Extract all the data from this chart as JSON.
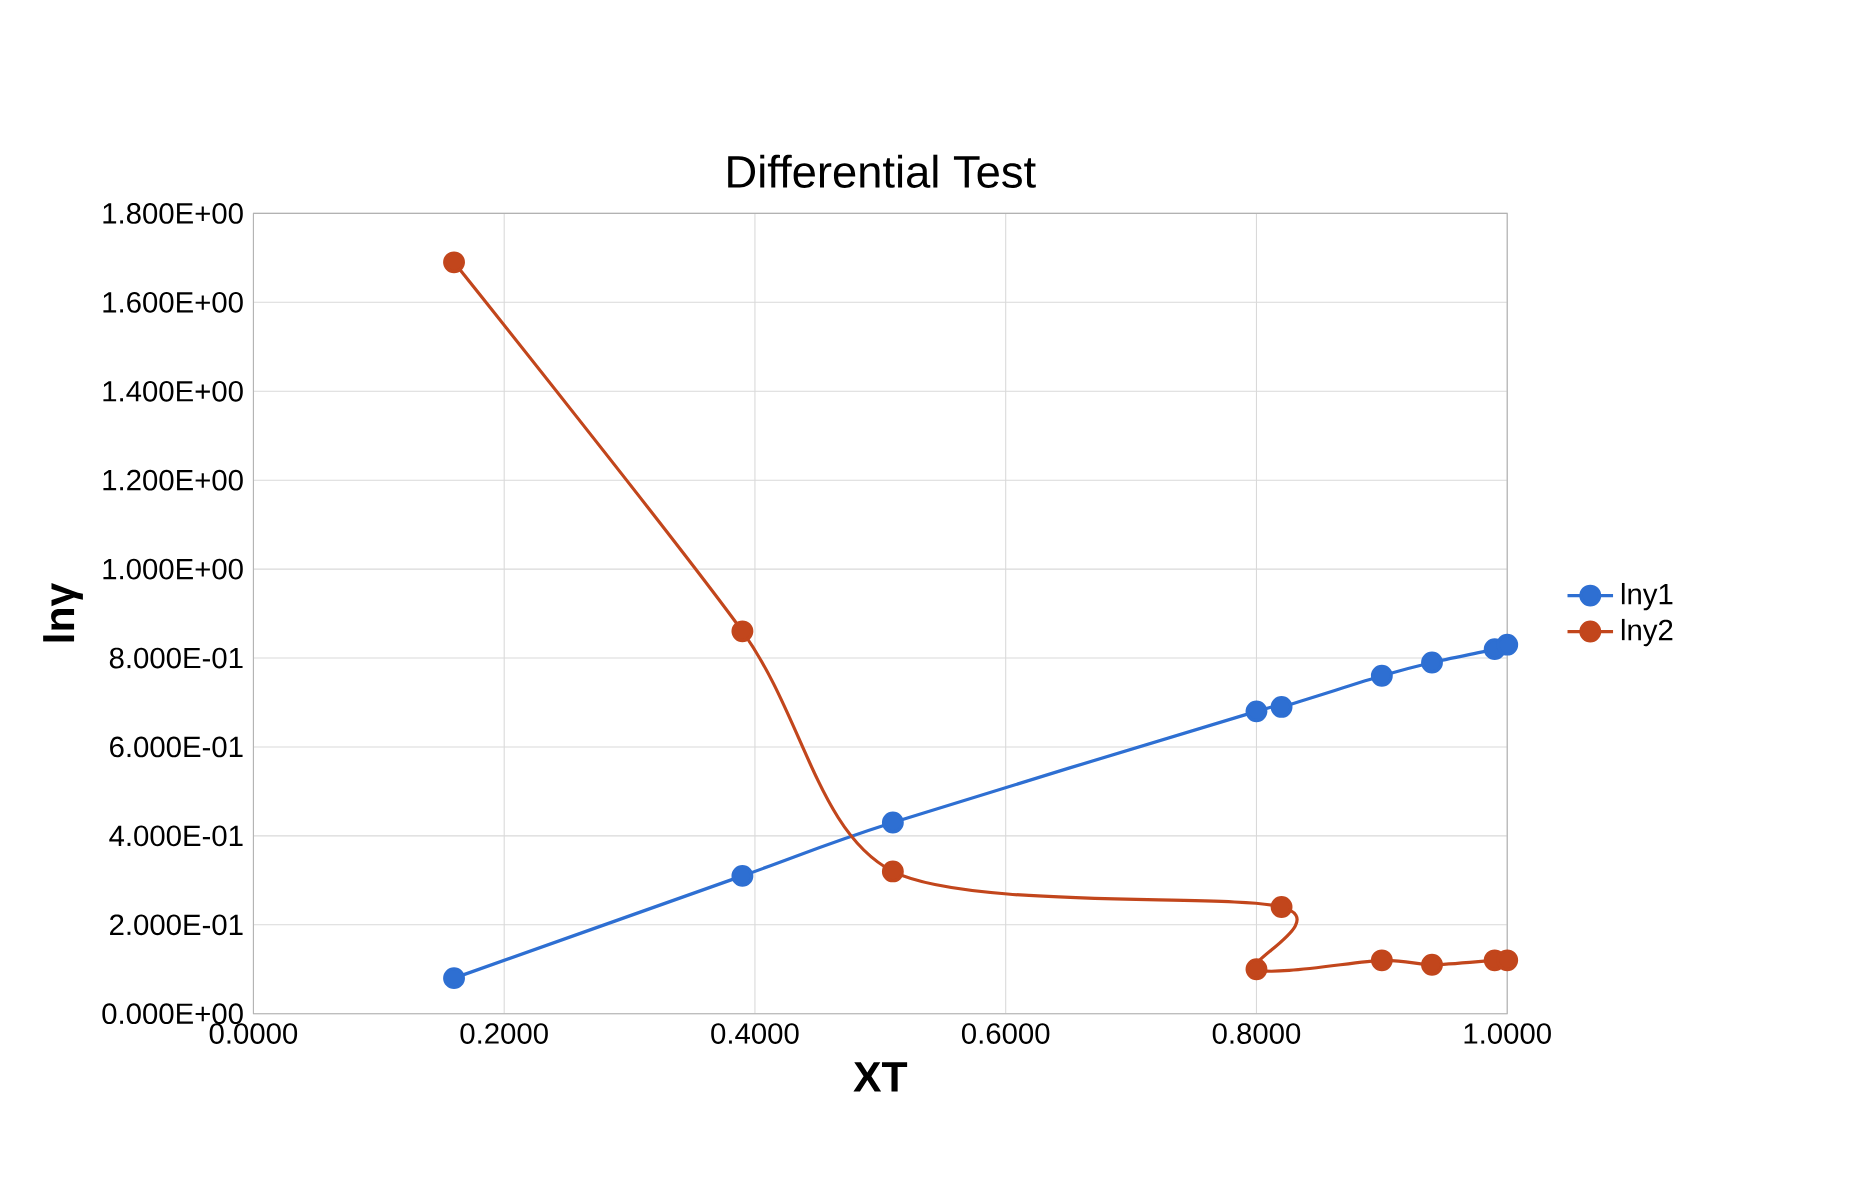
{
  "chart_data": {
    "type": "line",
    "title": "Differential Test",
    "xlabel": "XT",
    "ylabel": "lnγ",
    "xlim": [
      0,
      1
    ],
    "ylim": [
      0,
      1.8
    ],
    "xticks": [
      {
        "value": 0,
        "label": "0.0000"
      },
      {
        "value": 0.2,
        "label": "0.2000"
      },
      {
        "value": 0.4,
        "label": "0.4000"
      },
      {
        "value": 0.6,
        "label": "0.6000"
      },
      {
        "value": 0.8,
        "label": "0.8000"
      },
      {
        "value": 1,
        "label": "1.0000"
      }
    ],
    "yticks": [
      {
        "value": 0,
        "label": "0.000E+00"
      },
      {
        "value": 0.2,
        "label": "2.000E-01"
      },
      {
        "value": 0.4,
        "label": "4.000E-01"
      },
      {
        "value": 0.6,
        "label": "6.000E-01"
      },
      {
        "value": 0.8,
        "label": "8.000E-01"
      },
      {
        "value": 1.0,
        "label": "1.000E+00"
      },
      {
        "value": 1.2,
        "label": "1.200E+00"
      },
      {
        "value": 1.4,
        "label": "1.400E+00"
      },
      {
        "value": 1.6,
        "label": "1.600E+00"
      },
      {
        "value": 1.8,
        "label": "1.800E+00"
      }
    ],
    "grid": true,
    "legend": "right",
    "marker": "circle",
    "line_style": "solid",
    "series": [
      {
        "name": "lny1",
        "color": "#2e6fd2",
        "x": [
          0.16,
          0.39,
          0.51,
          0.8,
          0.82,
          0.9,
          0.94,
          0.99,
          1.0
        ],
        "values": [
          0.08,
          0.31,
          0.43,
          0.68,
          0.69,
          0.76,
          0.79,
          0.82,
          0.83
        ]
      },
      {
        "name": "lny2",
        "color": "#c2461c",
        "x": [
          0.16,
          0.39,
          0.51,
          0.82,
          0.8,
          0.9,
          0.94,
          0.99,
          1.0
        ],
        "values": [
          1.69,
          0.86,
          0.32,
          0.24,
          0.1,
          0.12,
          0.11,
          0.12,
          0.12
        ]
      }
    ]
  }
}
